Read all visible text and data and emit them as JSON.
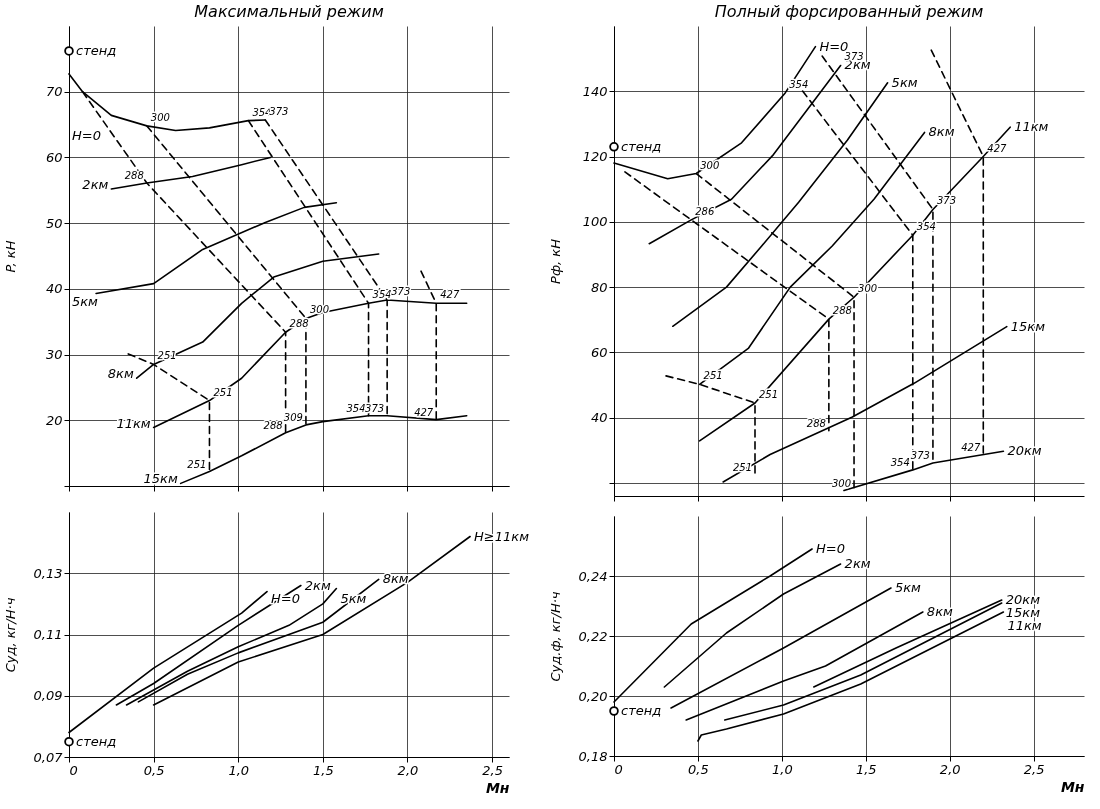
{
  "chart_data": [
    {
      "type": "line",
      "title": "Максимальный режим",
      "ylabel": "P, кН",
      "xlim": [
        0,
        2.6
      ],
      "ylim": [
        10,
        80
      ],
      "xticks": [
        0,
        0.5,
        1,
        1.5,
        2,
        2.5
      ],
      "yticks": [
        {
          "value": 10,
          "label": null
        },
        20,
        30,
        40,
        50,
        60,
        70
      ],
      "grid": true,
      "tick_labels": "y",
      "series": [
        {
          "name": "H=0",
          "color": "#000000",
          "x": [
            0,
            0.08,
            0.25,
            0.46,
            0.63,
            0.83,
            1.06,
            1.16
          ],
          "values": [
            72.7,
            70,
            66.4,
            64.8,
            64.1,
            64.5,
            65.6,
            65.7
          ]
        },
        {
          "name": "2км",
          "color": "#000000",
          "x": [
            0.25,
            0.46,
            0.73,
            1.02,
            1.19
          ],
          "values": [
            55.2,
            56.1,
            57.1,
            58.9,
            60
          ]
        },
        {
          "name": "5км",
          "color": "#000000",
          "x": [
            0.16,
            0.5,
            0.79,
            1.16,
            1.39,
            1.58
          ],
          "values": [
            39.3,
            40.8,
            46,
            50.1,
            52.4,
            53.1
          ]
        },
        {
          "name": "8км",
          "color": "#000000",
          "x": [
            0.4,
            0.5,
            0.79,
            1.02,
            1.21,
            1.5,
            1.83
          ],
          "values": [
            26.4,
            28.5,
            31.9,
            37.8,
            41.8,
            44.2,
            45.3
          ]
        },
        {
          "name": "11км",
          "color": "#000000",
          "x": [
            0.5,
            0.83,
            1.02,
            1.28,
            1.4,
            1.5,
            1.77,
            1.88,
            2.17,
            2.35
          ],
          "values": [
            18.9,
            23,
            26.4,
            33.4,
            35.5,
            36.4,
            37.8,
            38.3,
            37.8,
            37.8
          ]
        },
        {
          "name": "15км",
          "color": "#000000",
          "x": [
            0.66,
            0.83,
            1.02,
            1.28,
            1.4,
            1.5,
            1.77,
            1.88,
            2.17,
            2.35
          ],
          "values": [
            10.4,
            12.2,
            14.6,
            18.1,
            19.3,
            19.8,
            20.7,
            20.7,
            20.1,
            20.7
          ]
        },
        {
          "name": "стенд",
          "type": "scatter",
          "marker": "circle",
          "color": "#000000",
          "x": [
            0
          ],
          "values": [
            76.2
          ]
        },
        {
          "color": "#000000",
          "line_style": "dashed",
          "x": [
            0.08,
            0.46,
            1.28,
            1.28
          ],
          "values": [
            70,
            56.1,
            33.4,
            18.1
          ]
        },
        {
          "color": "#000000",
          "line_style": "dashed",
          "x": [
            0.46,
            1.4,
            1.4
          ],
          "values": [
            64.8,
            35.5,
            19.3
          ]
        },
        {
          "color": "#000000",
          "line_style": "dashed",
          "x": [
            1.06,
            1.77,
            1.77
          ],
          "values": [
            65.6,
            37.8,
            20.7
          ]
        },
        {
          "color": "#000000",
          "line_style": "dashed",
          "x": [
            1.16,
            1.88,
            1.88
          ],
          "values": [
            65.7,
            38.3,
            20.7
          ]
        },
        {
          "color": "#000000",
          "line_style": "dashed",
          "x": [
            2.08,
            2.17,
            2.17
          ],
          "values": [
            42.7,
            37.8,
            20.1
          ]
        },
        {
          "color": "#000000",
          "line_style": "dashed",
          "x": [
            0.35,
            0.5,
            0.83,
            0.83
          ],
          "values": [
            30.1,
            28.5,
            23,
            12.2
          ]
        }
      ],
      "annotations": [
        {
          "text": "300",
          "x": 0.46,
          "y": 64.8
        },
        {
          "text": "354",
          "x": 1.06,
          "y": 65.6
        },
        {
          "text": "373",
          "x": 1.16,
          "y": 65.7
        },
        {
          "text": "288",
          "x": 0.46,
          "y": 56.1
        },
        {
          "text": "251",
          "x": 0.5,
          "y": 28.5
        },
        {
          "text": "251",
          "x": 0.83,
          "y": 23
        },
        {
          "text": "288",
          "x": 1.28,
          "y": 33.4
        },
        {
          "text": "300",
          "x": 1.4,
          "y": 35.5
        },
        {
          "text": "354",
          "x": 1.77,
          "y": 37.8
        },
        {
          "text": "373",
          "x": 1.88,
          "y": 38.3
        },
        {
          "text": "427",
          "x": 2.17,
          "y": 37.8
        },
        {
          "text": "251",
          "x": 0.83,
          "y": 12.2
        },
        {
          "text": "288",
          "x": 1.28,
          "y": 18.1
        },
        {
          "text": "309",
          "x": 1.4,
          "y": 19.3
        },
        {
          "text": "354",
          "x": 1.77,
          "y": 20.7
        },
        {
          "text": "373",
          "x": 1.88,
          "y": 20.7
        },
        {
          "text": "427",
          "x": 2.17,
          "y": 20.1
        }
      ]
    },
    {
      "type": "line",
      "title": "Полный форсированный режим",
      "ylabel": "Pф, кН",
      "xlim": [
        0,
        2.8
      ],
      "ylim": [
        16,
        160
      ],
      "xticks": [
        0,
        0.5,
        1,
        1.5,
        2,
        2.5
      ],
      "yticks": [
        {
          "value": 20,
          "label": null
        },
        40,
        60,
        80,
        100,
        120,
        140
      ],
      "grid": true,
      "tick_labels": "y",
      "series": [
        {
          "name": "H=0",
          "color": "#000000",
          "x": [
            0,
            0.32,
            0.49,
            0.76,
            1.02,
            1.2
          ],
          "values": [
            118,
            113.2,
            114.8,
            124.2,
            139.5,
            153.7
          ]
        },
        {
          "name": "2км",
          "color": "#000000",
          "x": [
            0.21,
            0.46,
            0.7,
            0.95,
            1.35
          ],
          "values": [
            93.3,
            100.6,
            106.9,
            120.6,
            147.9
          ]
        },
        {
          "name": "5км",
          "color": "#000000",
          "x": [
            0.35,
            0.67,
            0.88,
            1.1,
            1.39,
            1.63
          ],
          "values": [
            68,
            80,
            92.6,
            106,
            125,
            142.6
          ]
        },
        {
          "name": "8км",
          "color": "#000000",
          "x": [
            0.51,
            0.8,
            1.05,
            1.3,
            1.55,
            1.85
          ],
          "values": [
            50.2,
            61.2,
            80,
            92.6,
            107,
            127.4
          ]
        },
        {
          "name": "11км",
          "color": "#000000",
          "x": [
            0.51,
            0.84,
            1.28,
            1.43,
            1.78,
            1.9,
            2.2,
            2.36
          ],
          "values": [
            32.9,
            44.5,
            70.2,
            76.9,
            95.9,
            103.8,
            120,
            129
          ]
        },
        {
          "name": "15км",
          "color": "#000000",
          "x": [
            0.65,
            0.93,
            1.42,
            1.79,
            2.34
          ],
          "values": [
            20.3,
            28.7,
            40.2,
            50.6,
            67.9
          ]
        },
        {
          "name": "20км",
          "color": "#000000",
          "x": [
            1.37,
            1.78,
            1.9,
            2.32
          ],
          "values": [
            17.7,
            24,
            26.1,
            29.7
          ]
        },
        {
          "name": "стенд",
          "type": "scatter",
          "marker": "circle",
          "color": "#000000",
          "x": [
            0
          ],
          "values": [
            123
          ]
        },
        {
          "color": "#000000",
          "line_style": "dashed",
          "x": [
            0.065,
            0.46,
            1.28,
            1.28
          ],
          "values": [
            115.3,
            100.6,
            70.2,
            36
          ]
        },
        {
          "color": "#000000",
          "line_style": "dashed",
          "x": [
            0.49,
            1.43,
            1.43
          ],
          "values": [
            114.8,
            76.9,
            17.5
          ]
        },
        {
          "color": "#000000",
          "line_style": "dashed",
          "x": [
            1.08,
            1.78,
            1.78
          ],
          "values": [
            143,
            95.9,
            24
          ]
        },
        {
          "color": "#000000",
          "line_style": "dashed",
          "x": [
            1.24,
            1.9,
            1.9
          ],
          "values": [
            150.8,
            103.8,
            26.1
          ]
        },
        {
          "color": "#000000",
          "line_style": "dashed",
          "x": [
            1.89,
            2.2,
            2.2
          ],
          "values": [
            152.6,
            120,
            28.5
          ]
        },
        {
          "color": "#000000",
          "line_style": "dashed",
          "x": [
            0.31,
            0.51,
            0.84,
            0.84
          ],
          "values": [
            52.8,
            50.2,
            44.5,
            22.4
          ]
        }
      ],
      "annotations": [
        {
          "text": "300",
          "x": 0.49,
          "y": 114.8
        },
        {
          "text": "286",
          "x": 0.46,
          "y": 100.6
        },
        {
          "text": "354",
          "x": 1.02,
          "y": 139.5
        },
        {
          "text": "373",
          "x": 1.35,
          "y": 147.9
        },
        {
          "text": "300",
          "x": 1.43,
          "y": 76.9
        },
        {
          "text": "288",
          "x": 1.28,
          "y": 70.2
        },
        {
          "text": "354",
          "x": 1.78,
          "y": 95.9
        },
        {
          "text": "373",
          "x": 1.9,
          "y": 103.8
        },
        {
          "text": "427",
          "x": 2.2,
          "y": 120
        },
        {
          "text": "251",
          "x": 0.51,
          "y": 50.2
        },
        {
          "text": "251",
          "x": 0.84,
          "y": 44.5
        },
        {
          "text": "251",
          "x": 0.84,
          "y": 22.4
        },
        {
          "text": "288",
          "x": 1.28,
          "y": 36
        },
        {
          "text": "300",
          "x": 1.43,
          "y": 17.5
        },
        {
          "text": "354",
          "x": 1.78,
          "y": 24
        },
        {
          "text": "373",
          "x": 1.9,
          "y": 26.1
        },
        {
          "text": "427",
          "x": 2.2,
          "y": 28.5
        }
      ]
    },
    {
      "type": "line",
      "xlabel": "Mн",
      "ylabel": "Cуд, кг/Н·ч",
      "xlim": [
        0,
        2.6
      ],
      "ylim": [
        0.07,
        0.15
      ],
      "xticks": [
        0,
        {
          "value": 0.5,
          "label": "0,5"
        },
        {
          "value": 1,
          "label": "1,0"
        },
        {
          "value": 1.5,
          "label": "1,5"
        },
        {
          "value": 2,
          "label": "2,0"
        },
        {
          "value": 2.5,
          "label": "2,5"
        }
      ],
      "yticks": [
        {
          "value": 0.07,
          "label": "0,07"
        },
        {
          "value": 0.09,
          "label": "0,09"
        },
        {
          "value": 0.11,
          "label": "0,11"
        },
        {
          "value": 0.13,
          "label": "0,13"
        }
      ],
      "grid": true,
      "series": [
        {
          "name": "H=0",
          "color": "#000000",
          "x": [
            0,
            0.5,
            1.02,
            1.17
          ],
          "values": [
            0.078,
            0.099,
            0.117,
            0.124
          ]
        },
        {
          "name": "2км",
          "color": "#000000",
          "x": [
            0.28,
            0.5,
            1,
            1.37
          ],
          "values": [
            0.087,
            0.094,
            0.113,
            0.126
          ]
        },
        {
          "name": "5км",
          "color": "#000000",
          "x": [
            0.34,
            0.7,
            1,
            1.3,
            1.5,
            1.58
          ],
          "values": [
            0.087,
            0.098,
            0.106,
            0.113,
            0.12,
            0.125
          ]
        },
        {
          "name": "8км",
          "color": "#000000",
          "x": [
            0.41,
            0.7,
            1,
            1.5,
            1.83
          ],
          "values": [
            0.088,
            0.097,
            0.104,
            0.114,
            0.128
          ]
        },
        {
          "name": "H≥11км",
          "color": "#000000",
          "x": [
            0.5,
            1,
            1.5,
            2,
            2.37
          ],
          "values": [
            0.087,
            0.101,
            0.11,
            0.127,
            0.142
          ]
        },
        {
          "name": "стенд",
          "type": "scatter",
          "marker": "circle",
          "color": "#000000",
          "x": [
            0
          ],
          "values": [
            0.075
          ]
        }
      ]
    },
    {
      "type": "line",
      "xlabel": "Mн",
      "ylabel": "Cуд.ф, кг/Н·ч",
      "xlim": [
        0,
        2.8
      ],
      "ylim": [
        0.18,
        0.26
      ],
      "xticks": [
        0,
        {
          "value": 0.5,
          "label": "0,5"
        },
        {
          "value": 1,
          "label": "1,0"
        },
        {
          "value": 1.5,
          "label": "1,5"
        },
        {
          "value": 2,
          "label": "2,0"
        },
        {
          "value": 2.5,
          "label": "2,5"
        }
      ],
      "yticks": [
        {
          "value": 0.18,
          "label": "0,18"
        },
        {
          "value": 0.2,
          "label": "0,20"
        },
        {
          "value": 0.22,
          "label": "0,22"
        },
        {
          "value": 0.24,
          "label": "0,24"
        }
      ],
      "grid": true,
      "series": [
        {
          "name": "H=0",
          "color": "#000000",
          "x": [
            0,
            0.46,
            0.93,
            1.18
          ],
          "values": [
            0.198,
            0.224,
            0.24,
            0.249
          ]
        },
        {
          "name": "2км",
          "color": "#000000",
          "x": [
            0.3,
            0.67,
            1.01,
            1.35
          ],
          "values": [
            0.203,
            0.221,
            0.234,
            0.244
          ]
        },
        {
          "name": "5км",
          "color": "#000000",
          "x": [
            0.34,
            1.01,
            1.65
          ],
          "values": [
            0.196,
            0.216,
            0.236
          ]
        },
        {
          "name": "8км",
          "color": "#000000",
          "x": [
            0.43,
            1.01,
            1.26,
            1.84
          ],
          "values": [
            0.192,
            0.205,
            0.21,
            0.228
          ]
        },
        {
          "name": "20км",
          "color": "#000000",
          "x": [
            1.19,
            1.68,
            2.31
          ],
          "values": [
            0.203,
            0.216,
            0.232
          ]
        },
        {
          "name": "15км",
          "color": "#000000",
          "x": [
            0.66,
            1.01,
            1.47,
            2.31
          ],
          "values": [
            0.192,
            0.197,
            0.207,
            0.231
          ]
        },
        {
          "name": "11км",
          "color": "#000000",
          "x": [
            0.5,
            0.52,
            0.67,
            1.01,
            1.47,
            2.32
          ],
          "values": [
            0.185,
            0.187,
            0.189,
            0.194,
            0.204,
            0.228
          ]
        },
        {
          "name": "стенд",
          "type": "scatter",
          "marker": "circle",
          "color": "#000000",
          "x": [
            0
          ],
          "values": [
            0.195
          ]
        }
      ]
    }
  ]
}
